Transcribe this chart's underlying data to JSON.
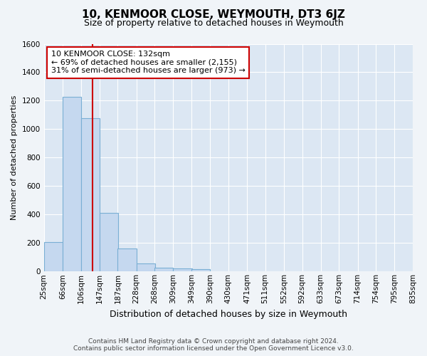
{
  "title": "10, KENMOOR CLOSE, WEYMOUTH, DT3 6JZ",
  "subtitle": "Size of property relative to detached houses in Weymouth",
  "xlabel": "Distribution of detached houses by size in Weymouth",
  "ylabel": "Number of detached properties",
  "footer_line1": "Contains HM Land Registry data © Crown copyright and database right 2024.",
  "footer_line2": "Contains public sector information licensed under the Open Government Licence v3.0.",
  "bin_labels": [
    "25sqm",
    "66sqm",
    "106sqm",
    "147sqm",
    "187sqm",
    "228sqm",
    "268sqm",
    "309sqm",
    "349sqm",
    "390sqm",
    "430sqm",
    "471sqm",
    "511sqm",
    "552sqm",
    "592sqm",
    "633sqm",
    "673sqm",
    "714sqm",
    "754sqm",
    "795sqm",
    "835sqm"
  ],
  "bin_edges": [
    25,
    66,
    106,
    147,
    187,
    228,
    268,
    309,
    349,
    390,
    430,
    471,
    511,
    552,
    592,
    633,
    673,
    714,
    754,
    795,
    835
  ],
  "bar_values": [
    205,
    1225,
    1075,
    410,
    160,
    55,
    25,
    20,
    15,
    0,
    0,
    0,
    0,
    0,
    0,
    0,
    0,
    0,
    0,
    0
  ],
  "bar_color": "#c5d8ef",
  "bar_edge_color": "#7aafd4",
  "plot_bg_color": "#dce7f3",
  "fig_bg_color": "#f0f4f8",
  "grid_color": "#ffffff",
  "property_line_x": 132,
  "property_line_color": "#cc0000",
  "annotation_text_line1": "10 KENMOOR CLOSE: 132sqm",
  "annotation_text_line2": "← 69% of detached houses are smaller (2,155)",
  "annotation_text_line3": "31% of semi-detached houses are larger (973) →",
  "annotation_box_color": "#cc0000",
  "annotation_bg": "#ffffff",
  "ylim": [
    0,
    1600
  ],
  "yticks": [
    0,
    200,
    400,
    600,
    800,
    1000,
    1200,
    1400,
    1600
  ],
  "title_fontsize": 11,
  "subtitle_fontsize": 9,
  "ylabel_fontsize": 8,
  "xlabel_fontsize": 9,
  "tick_fontsize": 7.5,
  "footer_fontsize": 6.5
}
